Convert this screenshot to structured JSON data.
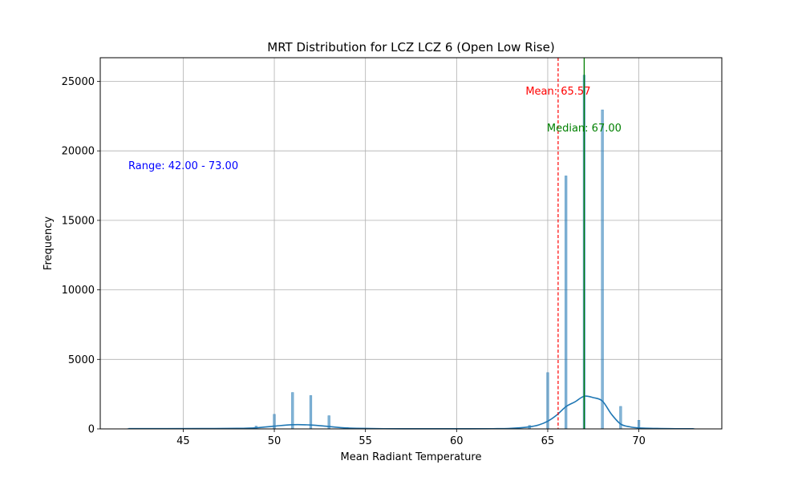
{
  "chart_data": {
    "type": "bar",
    "title": "MRT Distribution for LCZ LCZ 6 (Open Low Rise)",
    "xlabel": "Mean Radiant Temperature",
    "ylabel": "Frequency",
    "xlim": [
      40.45,
      74.55
    ],
    "ylim": [
      0,
      26700
    ],
    "xticks": [
      45,
      50,
      55,
      60,
      65,
      70
    ],
    "yticks": [
      0,
      5000,
      10000,
      15000,
      20000,
      25000
    ],
    "grid": true,
    "bar_width": 0.12,
    "histogram": {
      "x": [
        42,
        47,
        49,
        50,
        51,
        52,
        53,
        54,
        64,
        65,
        66,
        67,
        68,
        69,
        70,
        73
      ],
      "values": [
        30,
        30,
        200,
        1050,
        2620,
        2400,
        950,
        100,
        250,
        4050,
        18200,
        25450,
        22950,
        1620,
        620,
        30
      ]
    },
    "kde": {
      "x": [
        42,
        44,
        46,
        48,
        49,
        50,
        51,
        52,
        53,
        54,
        56,
        58,
        60,
        62,
        63,
        64,
        64.5,
        65,
        65.5,
        66,
        66.5,
        67,
        67.5,
        68,
        68.5,
        69,
        69.5,
        70,
        71,
        72,
        73
      ],
      "values": [
        20,
        20,
        25,
        40,
        80,
        200,
        300,
        280,
        170,
        60,
        15,
        10,
        10,
        15,
        40,
        150,
        280,
        550,
        1000,
        1600,
        1950,
        2350,
        2250,
        2000,
        1050,
        350,
        150,
        70,
        30,
        15,
        15
      ],
      "color": "#1f77b4"
    },
    "bar_color": "#1f77b4",
    "mean": {
      "value": 65.57,
      "label": "Mean: 65.57",
      "color": "#ff0000",
      "style": "dashed"
    },
    "median": {
      "value": 67.0,
      "label": "Median: 67.00",
      "color": "#008000",
      "style": "solid"
    },
    "range_note": {
      "label": "Range: 42.00 - 73.00",
      "color": "#0000ff"
    }
  }
}
